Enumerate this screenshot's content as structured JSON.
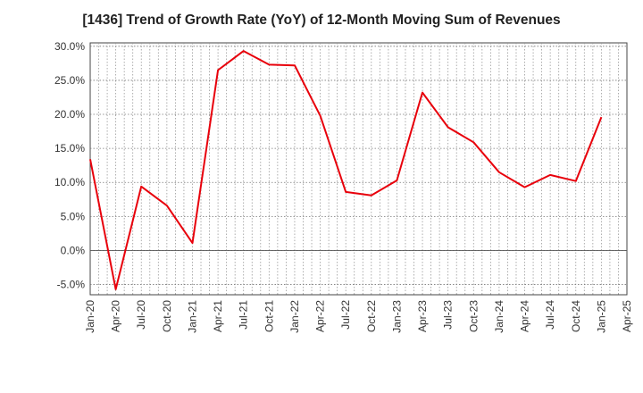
{
  "chart_data": {
    "type": "line",
    "title": "[1436]  Trend of Growth Rate (YoY) of 12-Month Moving Sum of Revenues",
    "xlabel": "",
    "ylabel": "",
    "x_ticks": [
      "Jan-20",
      "Apr-20",
      "Jul-20",
      "Oct-20",
      "Jan-21",
      "Apr-21",
      "Jul-21",
      "Oct-21",
      "Jan-22",
      "Apr-22",
      "Jul-22",
      "Oct-22",
      "Jan-23",
      "Apr-23",
      "Jul-23",
      "Oct-23",
      "Jan-24",
      "Apr-24",
      "Jul-24",
      "Oct-24",
      "Jan-25",
      "Apr-25"
    ],
    "y_ticks": [
      "30.0%",
      "25.0%",
      "20.0%",
      "15.0%",
      "10.0%",
      "5.0%",
      "0.0%",
      "-5.0%"
    ],
    "y_tick_values": [
      30,
      25,
      20,
      15,
      10,
      5,
      0,
      -5
    ],
    "ylim": [
      -6.5,
      30.5
    ],
    "grid": true,
    "series": [
      {
        "color": "#e8000b",
        "x": [
          "Jan-20",
          "Apr-20",
          "Jul-20",
          "Oct-20",
          "Jan-21",
          "Apr-21",
          "Jul-21",
          "Oct-21",
          "Jan-22",
          "Apr-22",
          "Jul-22",
          "Oct-22",
          "Jan-23",
          "Apr-23",
          "Jul-23",
          "Oct-23",
          "Jan-24",
          "Apr-24",
          "Jul-24",
          "Oct-24",
          "Jan-25"
        ],
        "values": [
          13.4,
          -5.7,
          9.4,
          6.6,
          1.1,
          26.5,
          29.3,
          27.3,
          27.2,
          19.8,
          8.6,
          8.1,
          10.3,
          23.2,
          18.1,
          15.9,
          11.5,
          9.3,
          11.1,
          10.2,
          19.6
        ]
      }
    ]
  }
}
